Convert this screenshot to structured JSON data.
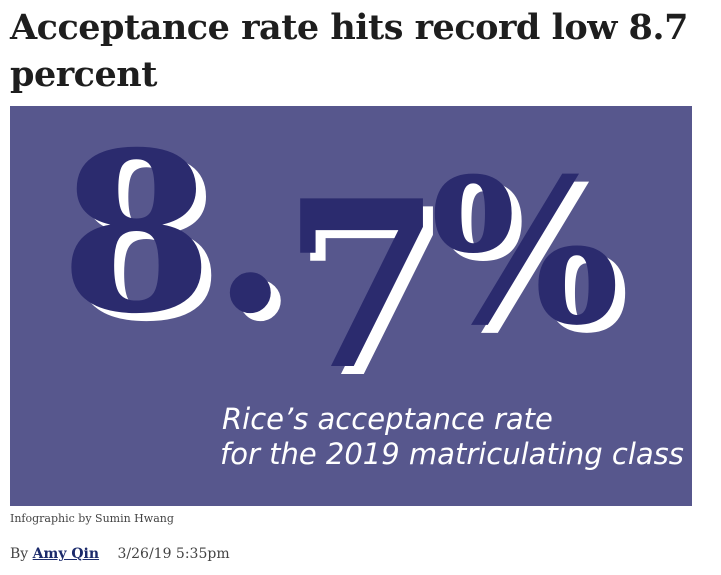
{
  "article": {
    "headline": "Acceptance rate hits record low 8.7 percent",
    "figure": {
      "big_stat": "8.7%",
      "stat_digit_8": "8",
      "stat_dot": ".",
      "stat_digit_7": "7",
      "stat_percent": "%",
      "description_line1": "Rice’s acceptance rate",
      "description_line2": "for the 2019 matriculating class",
      "colors": {
        "background": "#57578d",
        "numeral_fill": "#2b2b6e",
        "numeral_highlight": "#ffffff",
        "description_text": "#ffffff"
      }
    },
    "caption": "Infographic by Sumin Hwang",
    "byline_prefix": "By",
    "author": "Amy Qin",
    "timestamp": "3/26/19 5:35pm"
  }
}
